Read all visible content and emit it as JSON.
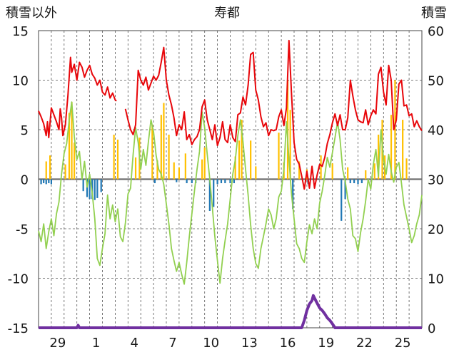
{
  "chart_data": {
    "type": "combo",
    "title": "寿都",
    "y_left_label": "積雪以外",
    "y_right_label": "積雪",
    "y_left_range": [
      -15,
      15
    ],
    "y_right_range": [
      0,
      60
    ],
    "y_left_ticks": [
      "15",
      "10",
      "5",
      "0",
      "-5",
      "-10",
      "-15"
    ],
    "y_right_ticks": [
      "60",
      "50",
      "40",
      "30",
      "20",
      "10",
      "0"
    ],
    "x_range": [
      0,
      30
    ],
    "x_ticks": [
      {
        "x": 1.5,
        "label": "29"
      },
      {
        "x": 4.5,
        "label": "1"
      },
      {
        "x": 7.5,
        "label": "4"
      },
      {
        "x": 10.5,
        "label": "7"
      },
      {
        "x": 13.5,
        "label": "10"
      },
      {
        "x": 16.5,
        "label": "13"
      },
      {
        "x": 19.5,
        "label": "16"
      },
      {
        "x": 22.5,
        "label": "19"
      },
      {
        "x": 25.5,
        "label": "22"
      },
      {
        "x": 28.5,
        "label": "25"
      }
    ],
    "colors": {
      "series_red": "#e8060a",
      "series_green": "#92d050",
      "series_orange": "#ffc000",
      "series_blue": "#1f77b4",
      "series_purple": "#7030a0",
      "zero_line": "#6e6e6e",
      "grid": "#555555"
    },
    "series_red": [
      [
        0.0,
        6.9
      ],
      [
        0.2,
        6.3
      ],
      [
        0.4,
        5.6
      ],
      [
        0.6,
        4.4
      ],
      [
        0.7,
        5.8
      ],
      [
        0.8,
        4.2
      ],
      [
        1.0,
        7.2
      ],
      [
        1.2,
        6.5
      ],
      [
        1.4,
        5.8
      ],
      [
        1.6,
        5.0
      ],
      [
        1.7,
        7.1
      ],
      [
        1.8,
        6.2
      ],
      [
        1.9,
        4.4
      ],
      [
        2.1,
        5.5
      ],
      [
        2.3,
        8.5
      ],
      [
        2.5,
        12.3
      ],
      [
        2.6,
        10.8
      ],
      [
        2.8,
        11.6
      ],
      [
        3.0,
        10.0
      ],
      [
        3.2,
        11.8
      ],
      [
        3.4,
        11.3
      ],
      [
        3.6,
        10.3
      ],
      [
        3.8,
        11.0
      ],
      [
        4.0,
        11.5
      ],
      [
        4.2,
        10.6
      ],
      [
        4.4,
        10.2
      ],
      [
        4.6,
        9.5
      ],
      [
        4.8,
        10.0
      ],
      [
        5.0,
        8.8
      ],
      [
        5.2,
        8.5
      ],
      [
        5.4,
        9.3
      ],
      [
        5.6,
        8.2
      ],
      [
        5.8,
        8.7
      ],
      [
        6.0,
        8.0
      ],
      [
        6.1,
        7.9
      ],
      [
        6.8,
        7.1
      ],
      [
        7.0,
        6.0
      ],
      [
        7.2,
        5.0
      ],
      [
        7.4,
        4.5
      ],
      [
        7.6,
        5.5
      ],
      [
        7.8,
        11.0
      ],
      [
        8.0,
        10.0
      ],
      [
        8.2,
        9.5
      ],
      [
        8.4,
        10.3
      ],
      [
        8.6,
        9.0
      ],
      [
        8.8,
        9.7
      ],
      [
        9.0,
        10.4
      ],
      [
        9.2,
        10.0
      ],
      [
        9.4,
        10.5
      ],
      [
        9.6,
        11.8
      ],
      [
        9.8,
        13.3
      ],
      [
        10.0,
        10.0
      ],
      [
        10.2,
        8.5
      ],
      [
        10.4,
        7.5
      ],
      [
        10.6,
        6.2
      ],
      [
        10.8,
        4.4
      ],
      [
        11.0,
        5.5
      ],
      [
        11.2,
        5.0
      ],
      [
        11.4,
        6.8
      ],
      [
        11.6,
        4.0
      ],
      [
        11.8,
        4.5
      ],
      [
        12.0,
        3.5
      ],
      [
        12.2,
        4.0
      ],
      [
        12.4,
        4.3
      ],
      [
        12.6,
        5.0
      ],
      [
        12.8,
        7.3
      ],
      [
        13.0,
        8.0
      ],
      [
        13.2,
        6.0
      ],
      [
        13.4,
        5.0
      ],
      [
        13.6,
        4.0
      ],
      [
        13.8,
        5.5
      ],
      [
        14.0,
        3.4
      ],
      [
        14.2,
        4.2
      ],
      [
        14.4,
        5.8
      ],
      [
        14.6,
        4.0
      ],
      [
        14.8,
        3.7
      ],
      [
        15.0,
        5.5
      ],
      [
        15.2,
        4.2
      ],
      [
        15.4,
        3.8
      ],
      [
        15.6,
        6.5
      ],
      [
        15.8,
        6.7
      ],
      [
        16.0,
        8.3
      ],
      [
        16.2,
        7.5
      ],
      [
        16.4,
        9.5
      ],
      [
        16.6,
        12.6
      ],
      [
        16.8,
        12.8
      ],
      [
        17.0,
        9.0
      ],
      [
        17.2,
        8.0
      ],
      [
        17.4,
        6.3
      ],
      [
        17.6,
        5.3
      ],
      [
        17.8,
        5.7
      ],
      [
        18.0,
        4.4
      ],
      [
        18.2,
        5.0
      ],
      [
        18.4,
        4.9
      ],
      [
        18.6,
        5.0
      ],
      [
        18.8,
        6.3
      ],
      [
        19.0,
        7.0
      ],
      [
        19.2,
        5.4
      ],
      [
        19.4,
        7.2
      ],
      [
        19.6,
        14.0
      ],
      [
        19.8,
        8.6
      ],
      [
        20.0,
        3.7
      ],
      [
        20.2,
        2.0
      ],
      [
        20.4,
        1.5
      ],
      [
        20.6,
        0.3
      ],
      [
        20.8,
        -1.0
      ],
      [
        21.0,
        0.8
      ],
      [
        21.2,
        -0.9
      ],
      [
        21.4,
        1.3
      ],
      [
        21.6,
        -0.9
      ],
      [
        21.8,
        0.4
      ],
      [
        22.0,
        1.5
      ],
      [
        22.2,
        1.3
      ],
      [
        22.4,
        2.2
      ],
      [
        22.6,
        3.6
      ],
      [
        22.8,
        4.5
      ],
      [
        23.0,
        5.7
      ],
      [
        23.2,
        6.6
      ],
      [
        23.4,
        5.4
      ],
      [
        23.6,
        6.5
      ],
      [
        23.8,
        5.0
      ],
      [
        24.0,
        5.0
      ],
      [
        24.2,
        6.2
      ],
      [
        24.4,
        10.0
      ],
      [
        24.6,
        8.4
      ],
      [
        24.8,
        7.0
      ],
      [
        25.0,
        6.0
      ],
      [
        25.2,
        5.8
      ],
      [
        25.4,
        5.7
      ],
      [
        25.6,
        7.0
      ],
      [
        25.8,
        5.5
      ],
      [
        26.0,
        6.4
      ],
      [
        26.2,
        7.0
      ],
      [
        26.4,
        6.6
      ],
      [
        26.6,
        10.6
      ],
      [
        26.8,
        11.3
      ],
      [
        27.0,
        8.8
      ],
      [
        27.2,
        7.5
      ],
      [
        27.4,
        11.5
      ],
      [
        27.6,
        10.0
      ],
      [
        27.8,
        5.0
      ],
      [
        28.0,
        6.0
      ],
      [
        28.2,
        9.6
      ],
      [
        28.4,
        10.0
      ],
      [
        28.6,
        7.4
      ],
      [
        28.8,
        7.5
      ],
      [
        29.0,
        6.4
      ],
      [
        29.2,
        6.6
      ],
      [
        29.4,
        5.3
      ],
      [
        29.6,
        5.9
      ],
      [
        29.8,
        5.3
      ],
      [
        30.0,
        4.9
      ]
    ],
    "series_green": [
      [
        0.0,
        -5.2
      ],
      [
        0.2,
        -6.3
      ],
      [
        0.4,
        -4.5
      ],
      [
        0.6,
        -7.0
      ],
      [
        0.8,
        -5.3
      ],
      [
        1.0,
        -4.0
      ],
      [
        1.2,
        -5.7
      ],
      [
        1.4,
        -3.5
      ],
      [
        1.6,
        -2.3
      ],
      [
        1.8,
        0.5
      ],
      [
        2.0,
        2.6
      ],
      [
        2.2,
        3.6
      ],
      [
        2.4,
        6.0
      ],
      [
        2.6,
        7.8
      ],
      [
        2.8,
        4.3
      ],
      [
        3.0,
        2.0
      ],
      [
        3.2,
        2.8
      ],
      [
        3.4,
        0.0
      ],
      [
        3.6,
        1.8
      ],
      [
        3.8,
        -0.8
      ],
      [
        4.0,
        0.5
      ],
      [
        4.2,
        -1.4
      ],
      [
        4.4,
        -4.0
      ],
      [
        4.6,
        -8.0
      ],
      [
        4.8,
        -8.7
      ],
      [
        5.0,
        -7.0
      ],
      [
        5.2,
        -5.5
      ],
      [
        5.4,
        -1.6
      ],
      [
        5.6,
        -4.0
      ],
      [
        5.8,
        -2.6
      ],
      [
        6.0,
        -4.3
      ],
      [
        6.2,
        -3.0
      ],
      [
        6.4,
        -5.8
      ],
      [
        6.6,
        -6.3
      ],
      [
        6.8,
        -4.4
      ],
      [
        7.0,
        -1.5
      ],
      [
        7.2,
        -0.9
      ],
      [
        7.4,
        2.5
      ],
      [
        7.6,
        5.2
      ],
      [
        7.8,
        3.7
      ],
      [
        8.0,
        1.0
      ],
      [
        8.2,
        3.0
      ],
      [
        8.4,
        1.4
      ],
      [
        8.6,
        3.8
      ],
      [
        8.8,
        6.0
      ],
      [
        9.0,
        4.8
      ],
      [
        9.2,
        2.4
      ],
      [
        9.4,
        1.0
      ],
      [
        9.6,
        0.5
      ],
      [
        9.8,
        -0.5
      ],
      [
        10.0,
        -2.5
      ],
      [
        10.2,
        -4.5
      ],
      [
        10.4,
        -7.0
      ],
      [
        10.6,
        -8.2
      ],
      [
        10.8,
        -9.3
      ],
      [
        11.0,
        -8.4
      ],
      [
        11.2,
        -9.6
      ],
      [
        11.4,
        -10.6
      ],
      [
        11.6,
        -8.4
      ],
      [
        11.8,
        -5.8
      ],
      [
        12.0,
        -3.5
      ],
      [
        12.2,
        -1.2
      ],
      [
        12.4,
        1.0
      ],
      [
        12.6,
        2.8
      ],
      [
        12.8,
        6.8
      ],
      [
        13.0,
        5.2
      ],
      [
        13.2,
        2.5
      ],
      [
        13.4,
        0.0
      ],
      [
        13.6,
        -2.8
      ],
      [
        13.8,
        -5.8
      ],
      [
        14.0,
        -8.2
      ],
      [
        14.2,
        -10.5
      ],
      [
        14.4,
        -8.0
      ],
      [
        14.6,
        -6.2
      ],
      [
        14.8,
        -4.5
      ],
      [
        15.0,
        -2.0
      ],
      [
        15.2,
        0.5
      ],
      [
        15.4,
        2.0
      ],
      [
        15.6,
        4.4
      ],
      [
        15.8,
        6.0
      ],
      [
        16.0,
        3.8
      ],
      [
        16.2,
        1.0
      ],
      [
        16.4,
        -1.6
      ],
      [
        16.6,
        -4.6
      ],
      [
        16.8,
        -7.0
      ],
      [
        17.0,
        -8.5
      ],
      [
        17.2,
        -9.0
      ],
      [
        17.4,
        -7.0
      ],
      [
        17.6,
        -5.8
      ],
      [
        17.8,
        -4.5
      ],
      [
        18.0,
        -3.0
      ],
      [
        18.2,
        -3.6
      ],
      [
        18.4,
        -5.0
      ],
      [
        18.6,
        -4.0
      ],
      [
        18.8,
        -1.8
      ],
      [
        19.0,
        -1.2
      ],
      [
        19.2,
        1.0
      ],
      [
        19.4,
        5.8
      ],
      [
        19.6,
        2.0
      ],
      [
        19.8,
        -1.5
      ],
      [
        20.0,
        -4.0
      ],
      [
        20.2,
        -6.5
      ],
      [
        20.4,
        -7.0
      ],
      [
        20.6,
        -8.0
      ],
      [
        20.8,
        -8.4
      ],
      [
        21.0,
        -6.3
      ],
      [
        21.2,
        -4.6
      ],
      [
        21.4,
        -5.5
      ],
      [
        21.6,
        -4.0
      ],
      [
        21.8,
        -5.0
      ],
      [
        22.0,
        -2.4
      ],
      [
        22.2,
        -1.2
      ],
      [
        22.4,
        0.4
      ],
      [
        22.6,
        2.2
      ],
      [
        22.8,
        1.2
      ],
      [
        23.0,
        2.7
      ],
      [
        23.2,
        4.2
      ],
      [
        23.4,
        5.8
      ],
      [
        23.6,
        4.0
      ],
      [
        23.8,
        1.0
      ],
      [
        24.0,
        -0.2
      ],
      [
        24.2,
        -2.0
      ],
      [
        24.4,
        -3.0
      ],
      [
        24.6,
        -5.7
      ],
      [
        24.8,
        -6.0
      ],
      [
        25.0,
        -7.3
      ],
      [
        25.2,
        -5.4
      ],
      [
        25.4,
        -4.0
      ],
      [
        25.6,
        -2.2
      ],
      [
        25.8,
        0.0
      ],
      [
        26.0,
        -1.0
      ],
      [
        26.2,
        1.5
      ],
      [
        26.4,
        3.0
      ],
      [
        26.6,
        0.3
      ],
      [
        26.8,
        5.0
      ],
      [
        27.0,
        2.0
      ],
      [
        27.2,
        0.5
      ],
      [
        27.4,
        2.5
      ],
      [
        27.6,
        0.8
      ],
      [
        27.8,
        -0.3
      ],
      [
        28.0,
        1.2
      ],
      [
        28.2,
        1.7
      ],
      [
        28.4,
        -0.4
      ],
      [
        28.6,
        -2.6
      ],
      [
        28.8,
        -3.8
      ],
      [
        29.0,
        -5.0
      ],
      [
        29.2,
        -6.4
      ],
      [
        29.4,
        -5.7
      ],
      [
        29.6,
        -4.5
      ],
      [
        29.8,
        -3.6
      ],
      [
        30.0,
        -1.6
      ]
    ],
    "series_orange": [
      [
        0.6,
        1.8
      ],
      [
        0.9,
        2.4
      ],
      [
        2.1,
        1.5
      ],
      [
        2.4,
        6.7
      ],
      [
        2.6,
        7.8
      ],
      [
        2.8,
        3.7
      ],
      [
        5.9,
        4.5
      ],
      [
        6.2,
        4.0
      ],
      [
        7.6,
        2.2
      ],
      [
        7.9,
        4.2
      ],
      [
        8.9,
        5.5
      ],
      [
        9.3,
        1.9
      ],
      [
        9.6,
        6.5
      ],
      [
        9.8,
        7.7
      ],
      [
        10.2,
        4.5
      ],
      [
        10.6,
        1.7
      ],
      [
        11.0,
        1.2
      ],
      [
        11.5,
        2.6
      ],
      [
        12.8,
        2.0
      ],
      [
        13.0,
        3.2
      ],
      [
        15.4,
        2.3
      ],
      [
        15.7,
        3.9
      ],
      [
        15.9,
        6.0
      ],
      [
        16.6,
        3.9
      ],
      [
        17.0,
        1.3
      ],
      [
        18.8,
        4.7
      ],
      [
        19.2,
        1.7
      ],
      [
        19.5,
        10.0
      ],
      [
        19.7,
        7.0
      ],
      [
        20.4,
        1.8
      ],
      [
        21.0,
        1.0
      ],
      [
        22.1,
        2.4
      ],
      [
        23.0,
        1.6
      ],
      [
        24.2,
        1.2
      ],
      [
        25.6,
        0.9
      ],
      [
        26.3,
        1.6
      ],
      [
        26.6,
        4.5
      ],
      [
        26.9,
        6.0
      ],
      [
        27.1,
        2.4
      ],
      [
        27.6,
        6.5
      ],
      [
        27.9,
        10.0
      ],
      [
        28.5,
        6.0
      ],
      [
        28.8,
        2.1
      ]
    ],
    "series_blue": [
      [
        0.2,
        -0.5
      ],
      [
        0.4,
        -0.4
      ],
      [
        0.6,
        -0.5
      ],
      [
        0.8,
        -0.4
      ],
      [
        1.0,
        -0.5
      ],
      [
        3.5,
        -1.2
      ],
      [
        3.8,
        -1.8
      ],
      [
        4.0,
        -2.0
      ],
      [
        4.2,
        -2.0
      ],
      [
        4.4,
        -2.1
      ],
      [
        4.6,
        -1.9
      ],
      [
        4.9,
        -1.3
      ],
      [
        9.1,
        -0.4
      ],
      [
        10.8,
        -0.3
      ],
      [
        11.6,
        -0.4
      ],
      [
        12.0,
        -0.4
      ],
      [
        12.3,
        -0.4
      ],
      [
        13.4,
        -3.2
      ],
      [
        13.7,
        -2.8
      ],
      [
        14.0,
        -0.5
      ],
      [
        14.3,
        -0.4
      ],
      [
        14.6,
        -0.4
      ],
      [
        15.0,
        -0.4
      ],
      [
        15.3,
        -0.4
      ],
      [
        19.9,
        -3.0
      ],
      [
        21.1,
        -0.5
      ],
      [
        23.7,
        -4.2
      ],
      [
        24.0,
        -2.0
      ],
      [
        24.4,
        -0.4
      ],
      [
        24.7,
        -0.4
      ],
      [
        25.0,
        -0.5
      ],
      [
        25.3,
        -0.4
      ]
    ],
    "series_purple": [
      [
        0.0,
        0.0
      ],
      [
        3.0,
        0.0
      ],
      [
        3.1,
        0.5
      ],
      [
        3.2,
        0.0
      ],
      [
        20.6,
        0.0
      ],
      [
        20.8,
        1.5
      ],
      [
        21.0,
        3.5
      ],
      [
        21.2,
        4.8
      ],
      [
        21.4,
        5.5
      ],
      [
        21.5,
        6.5
      ],
      [
        21.6,
        6.0
      ],
      [
        21.8,
        5.0
      ],
      [
        22.0,
        4.0
      ],
      [
        22.2,
        3.5
      ],
      [
        22.4,
        2.8
      ],
      [
        22.6,
        2.0
      ],
      [
        22.8,
        1.5
      ],
      [
        23.0,
        0.8
      ],
      [
        23.2,
        0.0
      ],
      [
        30.0,
        0.0
      ]
    ]
  }
}
